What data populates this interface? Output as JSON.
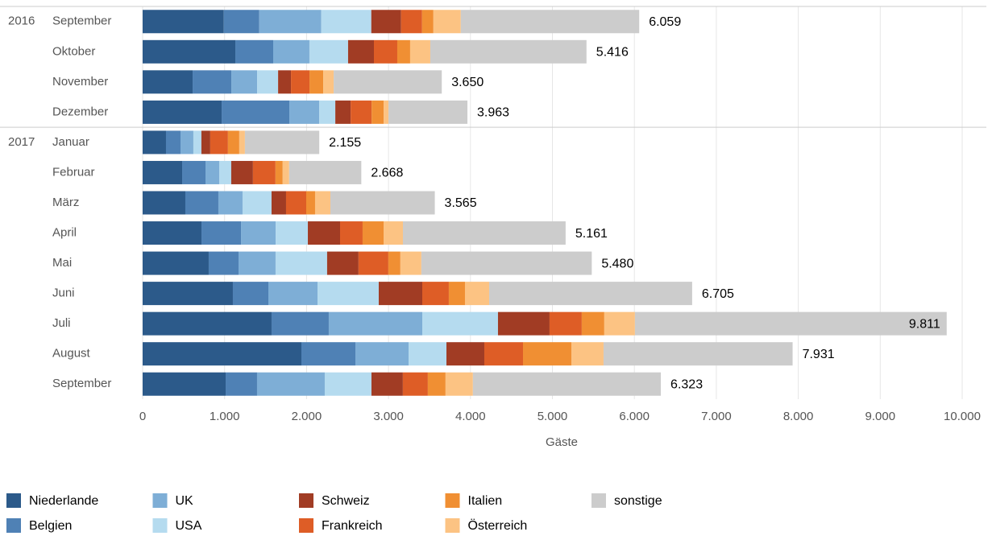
{
  "chart_data": {
    "type": "stacked-barh",
    "categories": [
      "September",
      "Oktober",
      "November",
      "Dezember",
      "Januar",
      "Februar",
      "März",
      "April",
      "Mai",
      "Juni",
      "Juli",
      "August",
      "September"
    ],
    "year_labels": [
      "2016",
      null,
      null,
      null,
      "2017",
      null,
      null,
      null,
      null,
      null,
      null,
      null,
      null
    ],
    "series": [
      {
        "name": "Niederlande",
        "color": "#2c5a8a",
        "values": [
          990,
          1131,
          610,
          964,
          285,
          482,
          521,
          718,
          806,
          1101,
          1573,
          1937,
          1013
        ]
      },
      {
        "name": "Belgien",
        "color": "#4f81b5",
        "values": [
          433,
          462,
          472,
          826,
          177,
          285,
          403,
          482,
          364,
          433,
          698,
          659,
          383
        ]
      },
      {
        "name": "UK",
        "color": "#7eaed6",
        "values": [
          757,
          442,
          315,
          364,
          157,
          167,
          295,
          423,
          452,
          600,
          1141,
          649,
          826
        ]
      },
      {
        "name": "USA",
        "color": "#b5dbef",
        "values": [
          610,
          472,
          256,
          197,
          98,
          147,
          354,
          393,
          629,
          747,
          924,
          462,
          570
        ]
      },
      {
        "name": "Schweiz",
        "color": "#a13c24",
        "values": [
          364,
          315,
          157,
          187,
          108,
          265,
          177,
          393,
          383,
          531,
          629,
          462,
          383
        ]
      },
      {
        "name": "Frankreich",
        "color": "#de5d26",
        "values": [
          256,
          285,
          226,
          256,
          216,
          275,
          246,
          275,
          364,
          324,
          393,
          472,
          305
        ]
      },
      {
        "name": "Italien",
        "color": "#f08f33",
        "values": [
          138,
          157,
          167,
          147,
          138,
          88,
          108,
          256,
          147,
          197,
          275,
          590,
          216
        ]
      },
      {
        "name": "Österreich",
        "color": "#fcc383",
        "values": [
          334,
          246,
          128,
          59,
          69,
          79,
          187,
          236,
          256,
          295,
          374,
          393,
          334
        ]
      },
      {
        "name": "sonstige",
        "color": "#cccccc",
        "values": [
          2177,
          1906,
          1319,
          963,
          907,
          880,
          1274,
          1985,
          2079,
          2477,
          3804,
          2307,
          2293
        ]
      }
    ],
    "totals": {
      "values": [
        6059,
        5416,
        3650,
        3963,
        2155,
        2668,
        3565,
        5161,
        5480,
        6705,
        9811,
        7931,
        6323
      ],
      "value_labels": [
        "6.059",
        "5.416",
        "3.650",
        "3.963",
        "2.155",
        "2.668",
        "3.565",
        "5.161",
        "5.480",
        "6.705",
        "9.811",
        "7.931",
        "6.323"
      ]
    },
    "xlabel": "Gäste",
    "xlim": [
      0,
      10000
    ],
    "xticks": [
      0,
      {
        "value": 1000,
        "label": "1.000"
      },
      {
        "value": 2000,
        "label": "2.000"
      },
      {
        "value": 3000,
        "label": "3.000"
      },
      {
        "value": 4000,
        "label": "4.000"
      },
      {
        "value": 5000,
        "label": "5.000"
      },
      {
        "value": 6000,
        "label": "6.000"
      },
      {
        "value": 7000,
        "label": "7.000"
      },
      {
        "value": 8000,
        "label": "8.000"
      },
      {
        "value": 9000,
        "label": "9.000"
      },
      {
        "value": 10000,
        "label": "10.000"
      }
    ],
    "grid": true
  }
}
